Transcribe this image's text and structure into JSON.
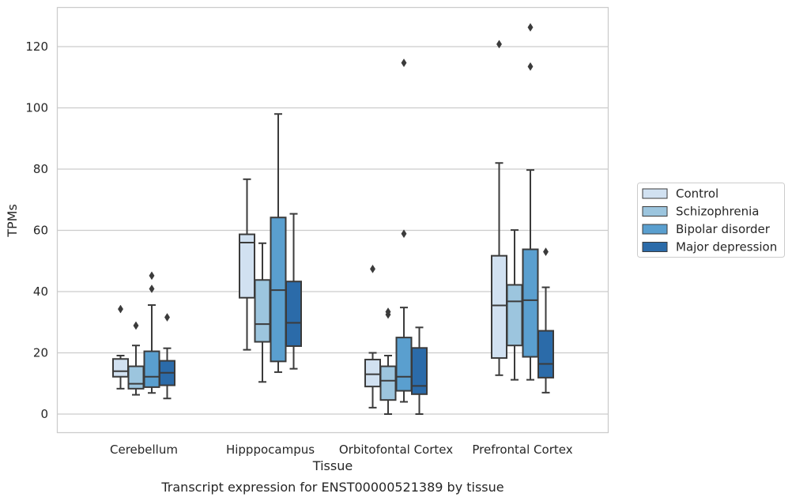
{
  "chart_data": {
    "type": "box",
    "caption": "Transcript expression for ENST00000521389 by tissue",
    "xlabel": "Tissue",
    "ylabel": "TPMs",
    "ylim": [
      -6,
      133
    ],
    "yticks": [
      0,
      20,
      40,
      60,
      80,
      100,
      120
    ],
    "grid": "horizontal",
    "legend_position": "right",
    "categories": [
      "Cerebellum",
      "Hipppocampus",
      "Orbitofontal Cortex",
      "Prefrontal Cortex"
    ],
    "series": [
      {
        "name": "Control",
        "color": "#d1e1f1",
        "boxes": [
          {
            "whisker_low": 8.3,
            "q1": 12.2,
            "median": 14.0,
            "q3": 18.0,
            "whisker_high": 19.1,
            "outliers": [
              34.3
            ]
          },
          {
            "whisker_low": 21.0,
            "q1": 38.0,
            "median": 56.0,
            "q3": 58.7,
            "whisker_high": 76.7,
            "outliers": []
          },
          {
            "whisker_low": 2.1,
            "q1": 9.0,
            "median": 13.0,
            "q3": 17.8,
            "whisker_high": 20.0,
            "outliers": [
              47.4
            ]
          },
          {
            "whisker_low": 12.7,
            "q1": 18.3,
            "median": 35.5,
            "q3": 51.7,
            "whisker_high": 82.0,
            "outliers": [
              120.8
            ]
          }
        ]
      },
      {
        "name": "Schizophrenia",
        "color": "#9cc5de",
        "boxes": [
          {
            "whisker_low": 6.3,
            "q1": 8.3,
            "median": 9.9,
            "q3": 15.6,
            "whisker_high": 22.4,
            "outliers": [
              28.9
            ]
          },
          {
            "whisker_low": 10.5,
            "q1": 23.6,
            "median": 29.4,
            "q3": 43.8,
            "whisker_high": 55.8,
            "outliers": []
          },
          {
            "whisker_low": 0.0,
            "q1": 4.6,
            "median": 10.9,
            "q3": 15.6,
            "whisker_high": 19.1,
            "outliers": [
              32.5,
              33.4
            ]
          },
          {
            "whisker_low": 11.2,
            "q1": 22.4,
            "median": 36.8,
            "q3": 42.2,
            "whisker_high": 60.1,
            "outliers": []
          }
        ]
      },
      {
        "name": "Bipolar disorder",
        "color": "#5a9fcf",
        "boxes": [
          {
            "whisker_low": 6.9,
            "q1": 8.8,
            "median": 12.2,
            "q3": 20.5,
            "whisker_high": 35.6,
            "outliers": [
              40.9,
              45.2
            ]
          },
          {
            "whisker_low": 13.7,
            "q1": 17.2,
            "median": 40.5,
            "q3": 64.2,
            "whisker_high": 98.0,
            "outliers": []
          },
          {
            "whisker_low": 4.0,
            "q1": 7.6,
            "median": 12.2,
            "q3": 25.0,
            "whisker_high": 34.8,
            "outliers": [
              58.9,
              114.7
            ]
          },
          {
            "whisker_low": 11.2,
            "q1": 18.7,
            "median": 37.2,
            "q3": 53.8,
            "whisker_high": 79.7,
            "outliers": [
              113.5,
              126.3
            ]
          }
        ]
      },
      {
        "name": "Major depression",
        "color": "#2b6ba9",
        "boxes": [
          {
            "whisker_low": 5.1,
            "q1": 9.4,
            "median": 13.5,
            "q3": 17.4,
            "whisker_high": 21.5,
            "outliers": [
              31.6
            ]
          },
          {
            "whisker_low": 14.8,
            "q1": 22.2,
            "median": 29.8,
            "q3": 43.3,
            "whisker_high": 65.4,
            "outliers": []
          },
          {
            "whisker_low": 0.0,
            "q1": 6.5,
            "median": 9.2,
            "q3": 21.6,
            "whisker_high": 28.3,
            "outliers": []
          },
          {
            "whisker_low": 7.0,
            "q1": 11.9,
            "median": 16.4,
            "q3": 27.2,
            "whisker_high": 41.4,
            "outliers": [
              53.0
            ]
          }
        ]
      }
    ]
  }
}
